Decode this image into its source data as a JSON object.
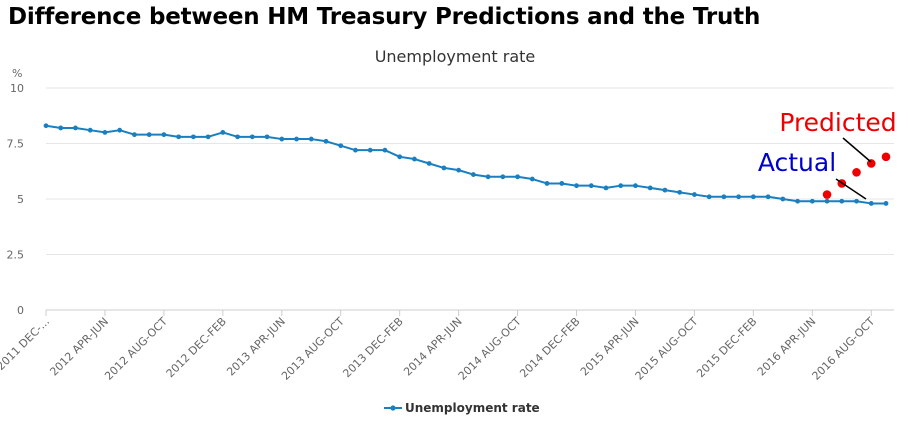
{
  "page": {
    "title": "Difference between HM Treasury Predictions and the Truth"
  },
  "chart_data": {
    "type": "line",
    "title": "Unemployment rate",
    "ylabel": "%",
    "xlabel": "",
    "ylim": [
      0,
      10
    ],
    "yticks": [
      0,
      2.5,
      5,
      7.5,
      10
    ],
    "ytick_labels": [
      "0",
      "2.5",
      "5",
      "7.5",
      "10"
    ],
    "x_tick_labels": [
      "2011 DEC-...",
      "2012 APR-JUN",
      "2012 AUG-OCT",
      "2012 DEC-FEB",
      "2013 APR-JUN",
      "2013 AUG-OCT",
      "2013 DEC-FEB",
      "2014 APR-JUN",
      "2014 AUG-OCT",
      "2014 DEC-FEB",
      "2015 APR-JUN",
      "2015 AUG-OCT",
      "2015 DEC-FEB",
      "2016 APR-JUN",
      "2016 AUG-OCT"
    ],
    "x_tick_index": [
      0,
      4,
      8,
      12,
      16,
      20,
      24,
      28,
      32,
      36,
      40,
      44,
      48,
      52,
      56
    ],
    "series": [
      {
        "name": "Unemployment rate",
        "color": "#1a7fc1",
        "values": [
          8.3,
          8.2,
          8.2,
          8.1,
          8.0,
          8.1,
          7.9,
          7.9,
          7.9,
          7.8,
          7.8,
          7.8,
          8.0,
          7.8,
          7.8,
          7.8,
          7.7,
          7.7,
          7.7,
          7.6,
          7.4,
          7.2,
          7.2,
          7.2,
          6.9,
          6.8,
          6.6,
          6.4,
          6.3,
          6.1,
          6.0,
          6.0,
          6.0,
          5.9,
          5.7,
          5.7,
          5.6,
          5.6,
          5.5,
          5.6,
          5.6,
          5.5,
          5.4,
          5.3,
          5.2,
          5.1,
          5.1,
          5.1,
          5.1,
          5.1,
          5.0,
          4.9,
          4.9,
          4.9,
          4.9,
          4.9,
          4.8,
          4.8
        ]
      },
      {
        "name": "Predicted",
        "color": "#ee0000",
        "x_index": [
          53,
          54,
          55,
          56,
          57
        ],
        "values": [
          5.2,
          5.7,
          6.2,
          6.6,
          6.9
        ]
      }
    ],
    "annotations": {
      "predicted": {
        "text": "Predicted",
        "color": "#ee0000"
      },
      "actual": {
        "text": "Actual",
        "color": "#0000cc"
      }
    },
    "legend": {
      "label": "Unemployment rate",
      "position": "bottom-center"
    }
  }
}
